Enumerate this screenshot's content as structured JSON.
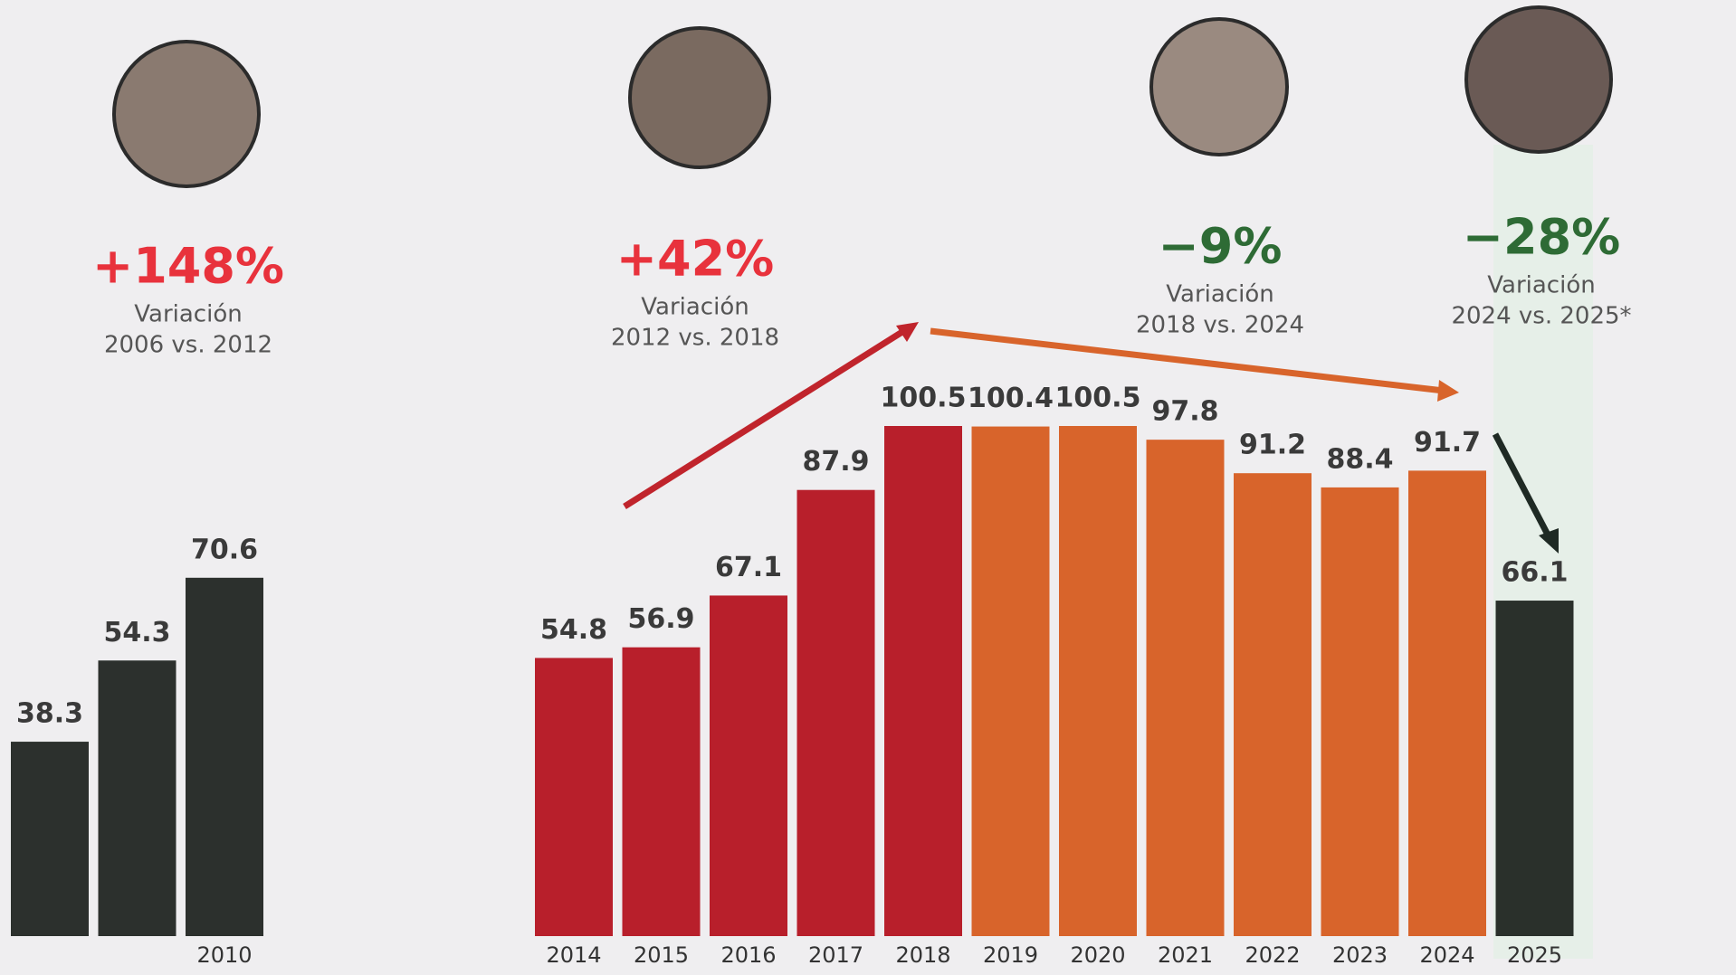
{
  "chart_data": {
    "type": "bar",
    "categories": [
      null,
      null,
      "2010",
      "2014",
      "2015",
      "2016",
      "2017",
      "2018",
      "2019",
      "2020",
      "2021",
      "2022",
      "2023",
      "2024",
      "2025"
    ],
    "values": [
      38.3,
      54.3,
      70.6,
      54.8,
      56.9,
      67.1,
      87.9,
      100.5,
      100.4,
      100.5,
      97.8,
      91.2,
      88.4,
      91.7,
      66.1
    ],
    "colors": [
      "#2c302d",
      "#2c302d",
      "#2c302d",
      "#b81f2b",
      "#b81f2b",
      "#b81f2b",
      "#b81f2b",
      "#b81f2b",
      "#d8642b",
      "#d8642b",
      "#d8642b",
      "#d8642b",
      "#d8642b",
      "#d8642b",
      "#2a302b"
    ],
    "annotations": [
      {
        "value": "+148%",
        "label": "Variación",
        "period": "2006 vs. 2012",
        "color": "#e8323c"
      },
      {
        "value": "+42%",
        "label": "Variación",
        "period": "2012 vs. 2018",
        "color": "#e8323c"
      },
      {
        "value": "−9%",
        "label": "Variación",
        "period": "2018 vs. 2024",
        "color": "#2e6b35"
      },
      {
        "value": "−28%",
        "label": "Variación",
        "period": "2024 vs. 2025*",
        "color": "#2e6b35"
      }
    ]
  }
}
